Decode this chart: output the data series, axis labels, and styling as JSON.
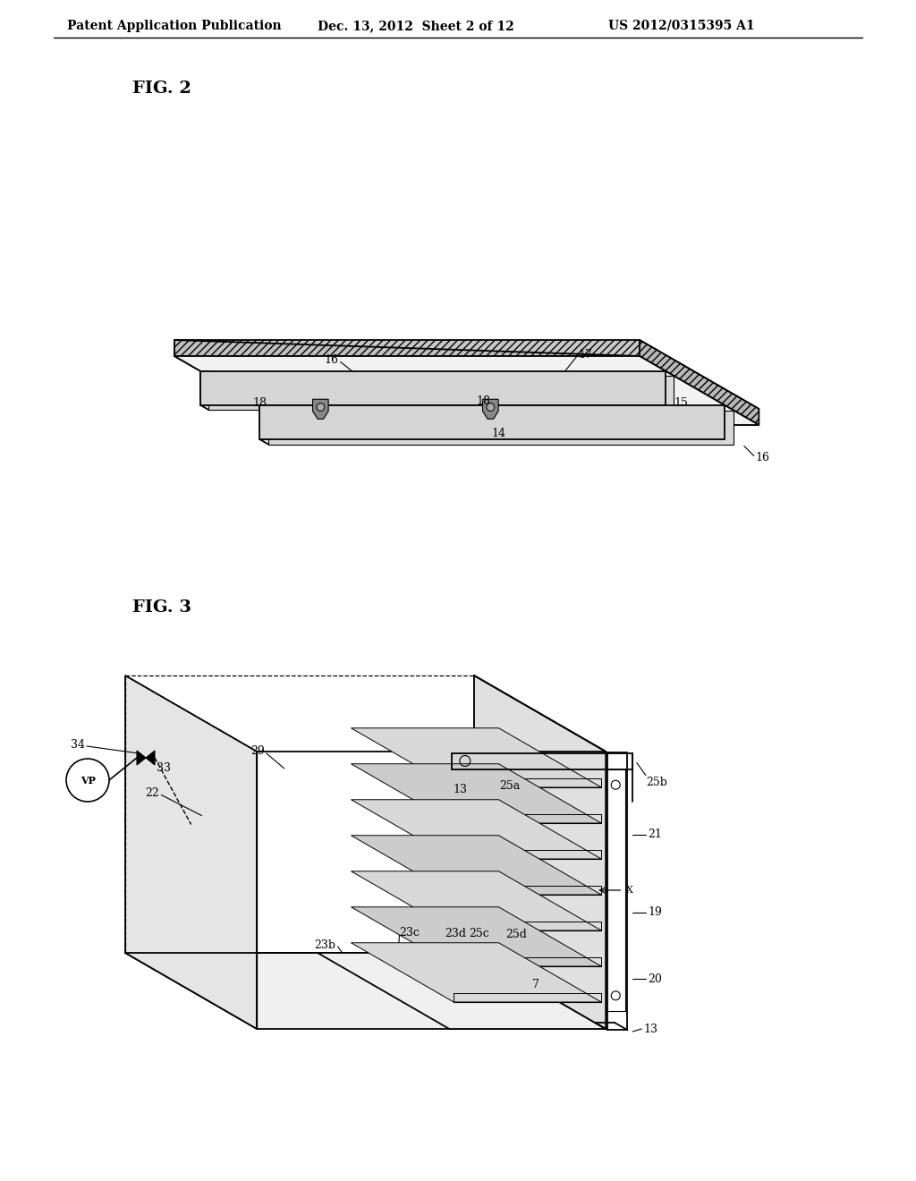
{
  "background_color": "#ffffff",
  "header_text": "Patent Application Publication",
  "header_date": "Dec. 13, 2012  Sheet 2 of 12",
  "header_patent": "US 2012/0315395 A1",
  "fig2_label": "FIG. 2",
  "fig3_label": "FIG. 3",
  "line_color": "#000000"
}
